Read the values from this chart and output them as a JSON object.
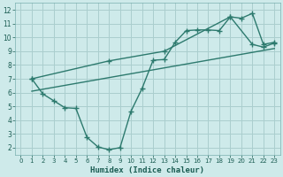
{
  "xlabel": "Humidex (Indice chaleur)",
  "background_color": "#ceeaea",
  "grid_color": "#aacece",
  "line_color": "#2d7a6e",
  "xlim": [
    -0.5,
    23.5
  ],
  "ylim": [
    1.5,
    12.5
  ],
  "xticks": [
    0,
    1,
    2,
    3,
    4,
    5,
    6,
    7,
    8,
    9,
    10,
    11,
    12,
    13,
    14,
    15,
    16,
    17,
    18,
    19,
    20,
    21,
    22,
    23
  ],
  "yticks": [
    2,
    3,
    4,
    5,
    6,
    7,
    8,
    9,
    10,
    11,
    12
  ],
  "line1_x": [
    1,
    2,
    3,
    4,
    5,
    6,
    7,
    8,
    9,
    10,
    11,
    12,
    13,
    14,
    15,
    16,
    17,
    18,
    19,
    20,
    21,
    22,
    23
  ],
  "line1_y": [
    7.0,
    5.9,
    5.4,
    4.9,
    4.85,
    2.75,
    2.05,
    1.85,
    2.0,
    4.65,
    6.3,
    8.35,
    8.4,
    9.65,
    10.5,
    10.55,
    10.55,
    10.5,
    11.5,
    11.4,
    11.75,
    9.5,
    9.65
  ],
  "line2_x": [
    1,
    8,
    13,
    19,
    21,
    22,
    23
  ],
  "line2_y": [
    7.0,
    8.3,
    9.0,
    11.5,
    9.5,
    9.3,
    9.6
  ],
  "line3_x": [
    1,
    23
  ],
  "line3_y": [
    6.1,
    9.2
  ],
  "marker": "+",
  "marker_size": 4,
  "line_width": 1.0
}
